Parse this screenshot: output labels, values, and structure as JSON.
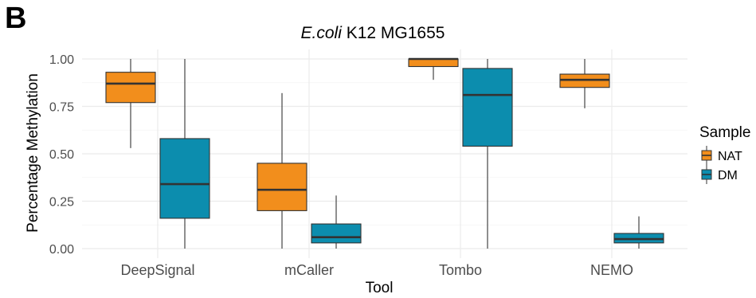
{
  "panel_label": "B",
  "chart_data": {
    "type": "boxplot",
    "title_italic": "E.coli",
    "title_rest": " K12 MG1655",
    "xlabel": "Tool",
    "ylabel": "Percentage Methylation",
    "ylim": [
      0,
      1
    ],
    "yticks": [
      "0.00",
      "0.25",
      "0.50",
      "0.75",
      "1.00"
    ],
    "ytick_values": [
      0,
      0.25,
      0.5,
      0.75,
      1.0
    ],
    "categories": [
      "DeepSignal",
      "mCaller",
      "Tombo",
      "NEMO"
    ],
    "legend": {
      "title": "Sample",
      "position": "right"
    },
    "series": [
      {
        "name": "NAT",
        "color": "#F28E1C",
        "boxes": [
          {
            "category": "DeepSignal",
            "min": 0.53,
            "q1": 0.77,
            "median": 0.87,
            "q3": 0.93,
            "max": 1.0
          },
          {
            "category": "mCaller",
            "min": 0.0,
            "q1": 0.2,
            "median": 0.31,
            "q3": 0.45,
            "max": 0.82
          },
          {
            "category": "Tombo",
            "min": 0.89,
            "q1": 0.96,
            "median": 1.0,
            "q3": 1.0,
            "max": 1.0
          },
          {
            "category": "NEMO",
            "min": 0.74,
            "q1": 0.85,
            "median": 0.89,
            "q3": 0.92,
            "max": 1.0
          }
        ]
      },
      {
        "name": "DM",
        "color": "#0C8DAE",
        "boxes": [
          {
            "category": "DeepSignal",
            "min": 0.0,
            "q1": 0.16,
            "median": 0.34,
            "q3": 0.58,
            "max": 1.0
          },
          {
            "category": "mCaller",
            "min": 0.0,
            "q1": 0.03,
            "median": 0.06,
            "q3": 0.13,
            "max": 0.28
          },
          {
            "category": "Tombo",
            "min": 0.0,
            "q1": 0.54,
            "median": 0.81,
            "q3": 0.95,
            "max": 1.0
          },
          {
            "category": "NEMO",
            "min": 0.0,
            "q1": 0.03,
            "median": 0.05,
            "q3": 0.08,
            "max": 0.17
          }
        ]
      }
    ]
  }
}
